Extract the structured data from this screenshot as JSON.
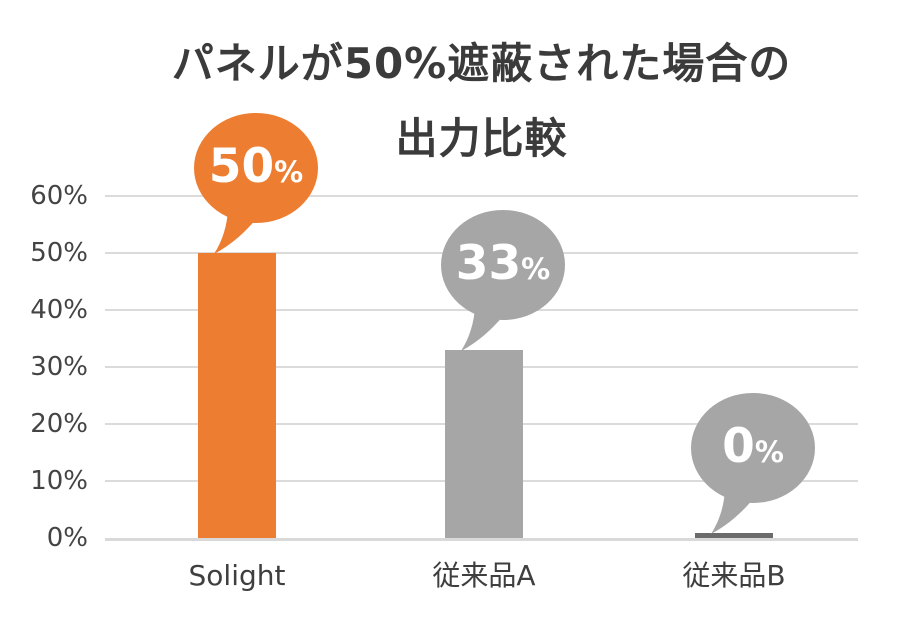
{
  "chart_data": {
    "type": "bar",
    "title": "パネルが50%遮蔽された場合の出力比較",
    "title_line1": "パネルが50%遮蔽された場合の",
    "title_line2": "出力比較",
    "categories": [
      "Solight",
      "従来品A",
      "従来品B"
    ],
    "values": [
      50,
      33,
      0
    ],
    "xlabel": "",
    "ylabel": "",
    "ylim": [
      0,
      60
    ],
    "grid": true,
    "legend": "none",
    "ytick_values": [
      0,
      10,
      20,
      30,
      40,
      50,
      60
    ],
    "ytick_labels": [
      "0%",
      "10%",
      "20%",
      "30%",
      "40%",
      "50%",
      "60%"
    ],
    "bars": [
      {
        "category": "Solight",
        "value": 50,
        "bubble_number": "50",
        "bubble_suffix": "%",
        "bar_color": "#ED7D31",
        "bubble_color": "#ED7D31"
      },
      {
        "category": "従来品A",
        "value": 33,
        "bubble_number": "33",
        "bubble_suffix": "%",
        "bar_color": "#A6A6A6",
        "bubble_color": "#A6A6A6"
      },
      {
        "category": "従来品B",
        "value": 0,
        "bubble_number": "0",
        "bubble_suffix": "%",
        "bar_color": "#6B6B6B",
        "bubble_color": "#A6A6A6"
      }
    ]
  },
  "colors": {
    "background": "#FFFFFF",
    "title_text": "#3B3B3B",
    "axis_text": "#444444",
    "gridline": "#DBDBDB",
    "baseline": "#D9D9D9",
    "bubble_text": "#FFFFFF",
    "accent_orange": "#ED7D31",
    "gray": "#A6A6A6",
    "dark_gray": "#6B6B6B"
  }
}
